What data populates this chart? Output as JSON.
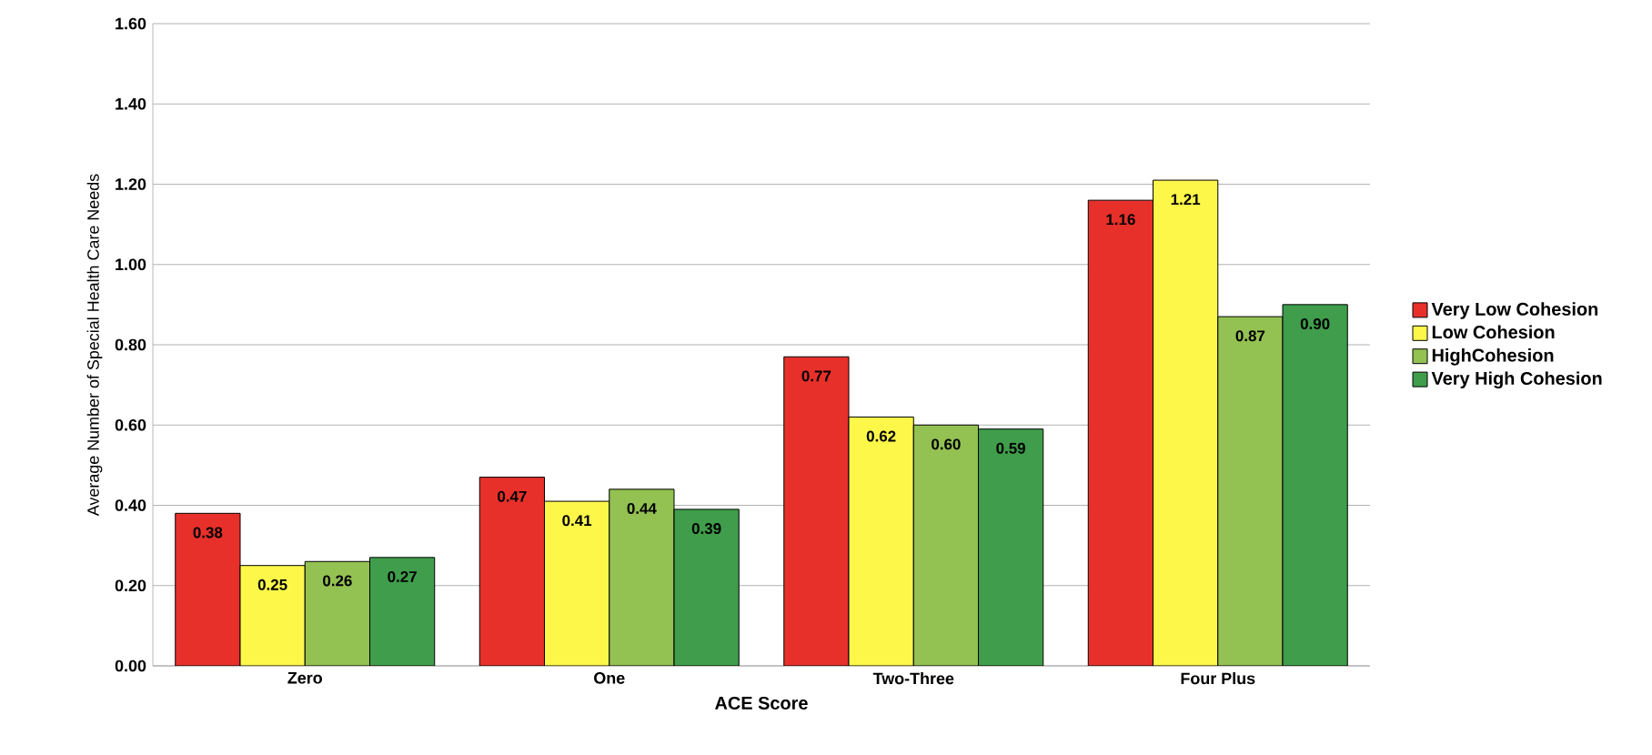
{
  "chart_data": {
    "type": "bar",
    "xlabel": "ACE Score",
    "ylabel": "Average Number of Special Health Care Needs",
    "categories": [
      "Zero",
      "One",
      "Two-Three",
      "Four Plus"
    ],
    "series": [
      {
        "name": "Very Low Cohesion",
        "color": "#e8302b",
        "values": [
          0.38,
          0.47,
          0.77,
          1.16
        ],
        "value_labels": [
          "0.38",
          "0.47",
          "0.77",
          "1.16"
        ]
      },
      {
        "name": "Low Cohesion",
        "color": "#fdf74a",
        "values": [
          0.25,
          0.41,
          0.62,
          1.21
        ],
        "value_labels": [
          "0.25",
          "0.41",
          "0.62",
          "1.21"
        ]
      },
      {
        "name": "HighCohesion",
        "color": "#93c152",
        "values": [
          0.26,
          0.44,
          0.6,
          0.87
        ],
        "value_labels": [
          "0.26",
          "0.44",
          "0.60",
          "0.87"
        ]
      },
      {
        "name": "Very High Cohesion",
        "color": "#3f9d4b",
        "values": [
          0.27,
          0.39,
          0.59,
          0.9
        ],
        "value_labels": [
          "0.27",
          "0.39",
          "0.59",
          "0.90"
        ]
      }
    ],
    "ylim": [
      0,
      1.6
    ],
    "yticks": [
      {
        "value": 0,
        "label": "0.00"
      },
      {
        "value": 0.2,
        "label": "0.20"
      },
      {
        "value": 0.4,
        "label": "0.40"
      },
      {
        "value": 0.6,
        "label": "0.60"
      },
      {
        "value": 0.8,
        "label": "0.80"
      },
      {
        "value": 1.0,
        "label": "1.00"
      },
      {
        "value": 1.2,
        "label": "1.20"
      },
      {
        "value": 1.4,
        "label": "1.40"
      },
      {
        "value": 1.6,
        "label": "1.60"
      }
    ],
    "grid": "y",
    "legend": "right"
  }
}
